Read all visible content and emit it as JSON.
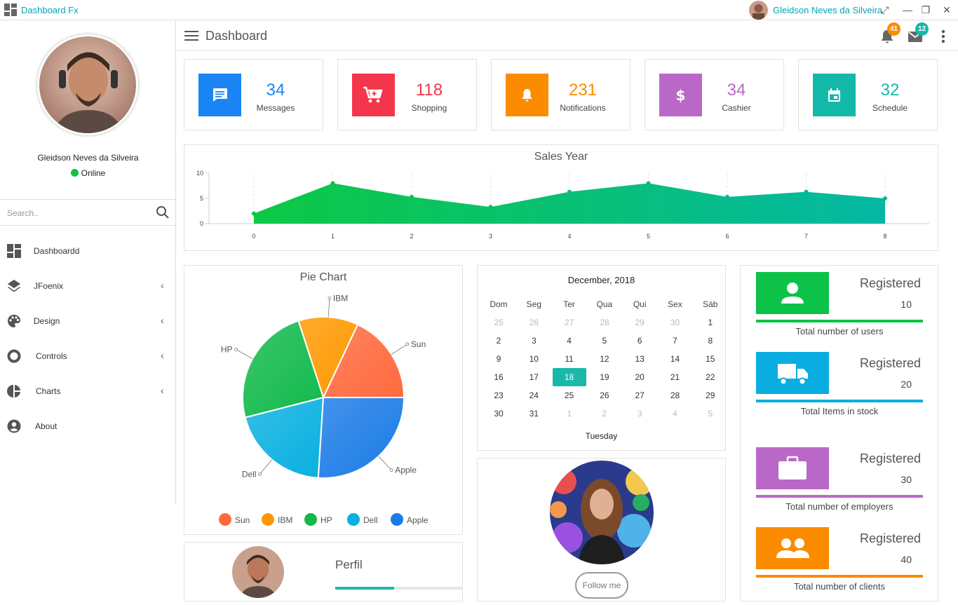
{
  "titlebar": {
    "app_title": "Dashboard Fx",
    "user_name": "Gleidson Neves da Silveira",
    "buttons": {
      "fullscreen": "⤢",
      "minimize": "—",
      "restore": "❐",
      "close": "✕"
    }
  },
  "sidebar": {
    "profile_name": "Gleidson Neves da Silveira",
    "status": "Online",
    "search_placeholder": "Search..",
    "items": [
      {
        "label": "Dashboardd",
        "icon": "dashboard-icon",
        "has_submenu": false
      },
      {
        "label": "JFoenix",
        "icon": "layers-icon",
        "has_submenu": true
      },
      {
        "label": "Design",
        "icon": "palette-icon",
        "has_submenu": true
      },
      {
        "label": "Controls",
        "icon": "ring-icon",
        "has_submenu": true
      },
      {
        "label": "Charts",
        "icon": "pie-icon",
        "has_submenu": true
      },
      {
        "label": "About",
        "icon": "account-icon",
        "has_submenu": false
      }
    ],
    "chevron": "‹"
  },
  "header": {
    "title": "Dashboard",
    "notifications_badge": "41",
    "messages_badge": "12"
  },
  "stats": [
    {
      "value": "34",
      "label": "Messages",
      "color": "#1a84f4",
      "icon": "message-icon"
    },
    {
      "value": "118",
      "label": "Shopping",
      "color": "#f4364c",
      "icon": "cart-icon"
    },
    {
      "value": "231",
      "label": "Notifications",
      "color": "#fb8c00",
      "icon": "bell-icon"
    },
    {
      "value": "34",
      "label": "Cashier",
      "color": "#ba68c8",
      "icon": "dollar-icon"
    },
    {
      "value": "32",
      "label": "Schedule",
      "color": "#13b8a8",
      "icon": "calendar-icon"
    }
  ],
  "chart_data": [
    {
      "type": "area",
      "title": "Sales Year",
      "x": [
        0,
        1,
        2,
        3,
        4,
        5,
        6,
        7,
        8
      ],
      "values": [
        2,
        8,
        5.3,
        3.3,
        6.3,
        8,
        5.3,
        6.3,
        5
      ],
      "ylim": [
        0,
        10
      ],
      "yticks": [
        0,
        5,
        10
      ],
      "xlabel": "",
      "ylabel": "",
      "grid": "vertical dashed"
    },
    {
      "type": "pie",
      "title": "Pie Chart",
      "categories": [
        "Sun",
        "IBM",
        "HP",
        "Dell",
        "Apple"
      ],
      "values": [
        18,
        12,
        24,
        20,
        26
      ],
      "colors": [
        "#ff6a3d",
        "#ff9800",
        "#11b94b",
        "#09b0e0",
        "#1a7be6"
      ],
      "legend": "bottom"
    }
  ],
  "calendar": {
    "title": "December, 2018",
    "weekdays": [
      "Dom",
      "Seg",
      "Ter",
      "Qua",
      "Qui",
      "Sex",
      "Sáb"
    ],
    "weeks": [
      [
        "25",
        "26",
        "27",
        "28",
        "29",
        "30",
        "1"
      ],
      [
        "2",
        "3",
        "4",
        "5",
        "6",
        "7",
        "8"
      ],
      [
        "9",
        "10",
        "11",
        "12",
        "13",
        "14",
        "15"
      ],
      [
        "16",
        "17",
        "18",
        "19",
        "20",
        "21",
        "22"
      ],
      [
        "23",
        "24",
        "25",
        "26",
        "27",
        "28",
        "29"
      ],
      [
        "30",
        "31",
        "1",
        "2",
        "3",
        "4",
        "5"
      ]
    ],
    "selected": "18",
    "day_name": "Tuesday"
  },
  "follow_button": "Follow me",
  "perfil": {
    "label": "Perfil",
    "progress": 0.46
  },
  "registered": [
    {
      "label": "Registered",
      "count": "10",
      "caption": "Total number of users",
      "color": "#0cc248",
      "icon": "user-icon"
    },
    {
      "label": "Registered",
      "count": "20",
      "caption": "Total Items in stock",
      "color": "#0aade0",
      "icon": "truck-icon"
    },
    {
      "label": "Registered",
      "count": "30",
      "caption": "Total number of employers",
      "color": "#ba68c8",
      "icon": "briefcase-icon"
    },
    {
      "label": "Registered",
      "count": "40",
      "caption": "Total number of clients",
      "color": "#fb8c00",
      "icon": "group-icon"
    }
  ]
}
